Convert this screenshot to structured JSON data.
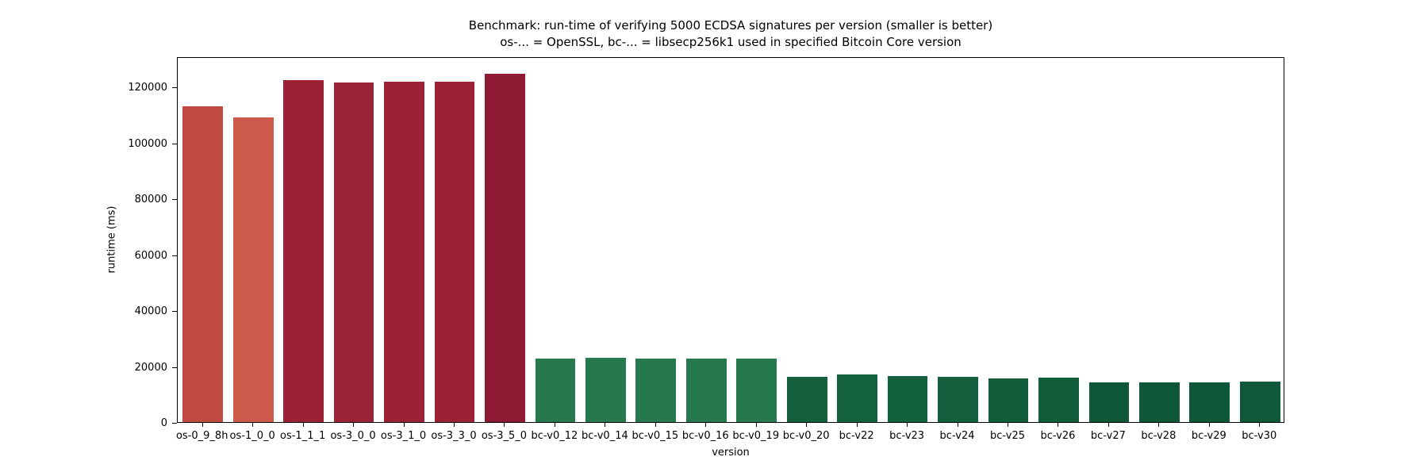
{
  "chart_data": {
    "type": "bar",
    "title": "Benchmark: run-time of verifying 5000 ECDSA signatures per version (smaller is better)",
    "subtitle": "os-... = OpenSSL, bc-... = libsecp256k1 used in specified Bitcoin Core version",
    "xlabel": "version",
    "ylabel": "runtime (ms)",
    "ylim": [
      0,
      130800
    ],
    "y_ticks": [
      0,
      20000,
      40000,
      60000,
      80000,
      100000,
      120000
    ],
    "grid": false,
    "legend_position": "none",
    "categories": [
      "os-0_9_8h",
      "os-1_0_0",
      "os-1_1_1",
      "os-3_0_0",
      "os-3_1_0",
      "os-3_3_0",
      "os-3_5_0",
      "bc-v0_12",
      "bc-v0_14",
      "bc-v0_15",
      "bc-v0_16",
      "bc-v0_19",
      "bc-v0_20",
      "bc-v22",
      "bc-v23",
      "bc-v24",
      "bc-v25",
      "bc-v26",
      "bc-v27",
      "bc-v28",
      "bc-v29",
      "bc-v30"
    ],
    "values": [
      113000,
      109000,
      122200,
      121300,
      121800,
      121800,
      124700,
      22600,
      23000,
      22600,
      22600,
      22600,
      16200,
      16900,
      16600,
      16200,
      15700,
      15800,
      14200,
      14200,
      14200,
      14500
    ],
    "bar_colors": [
      "#c04a42",
      "#cd5a4a",
      "#9c2134",
      "#9c2235",
      "#9c2134",
      "#9c2134",
      "#8e1a33",
      "#26794d",
      "#26794d",
      "#26794d",
      "#26794d",
      "#26794d",
      "#135f3d",
      "#14613e",
      "#13603d",
      "#135f3d",
      "#115d3b",
      "#115d3b",
      "#0e5839",
      "#0e5839",
      "#0e5839",
      "#0f593a"
    ]
  }
}
